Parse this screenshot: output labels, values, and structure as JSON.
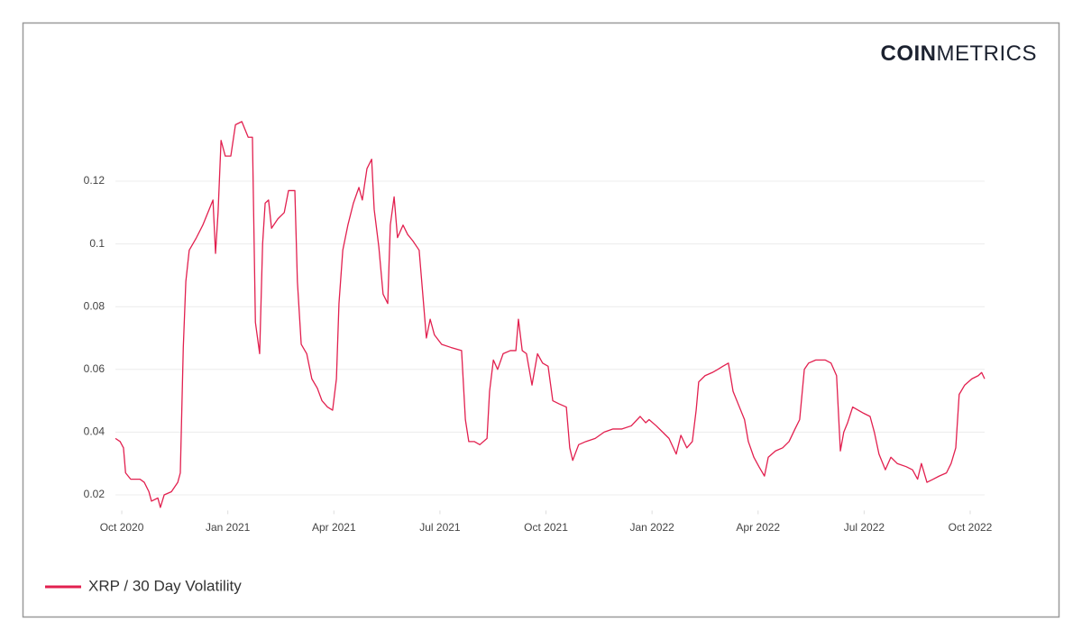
{
  "logo": {
    "bold": "COIN",
    "light": "METRICS"
  },
  "chart_data": {
    "type": "line",
    "x": [
      2020.735,
      2020.746,
      2020.754,
      2020.759,
      2020.771,
      2020.793,
      2020.803,
      2020.814,
      2020.82,
      2020.835,
      2020.841,
      2020.85,
      2020.867,
      2020.882,
      2020.888,
      2020.895,
      2020.901,
      2020.909,
      2020.926,
      2020.941,
      2020.956,
      2020.965,
      2020.971,
      2020.977,
      2020.984,
      2020.994,
      2021.007,
      2021.018,
      2021.033,
      2021.048,
      2021.058,
      2021.065,
      2021.075,
      2021.082,
      2021.088,
      2021.096,
      2021.103,
      2021.118,
      2021.133,
      2021.143,
      2021.158,
      2021.164,
      2021.173,
      2021.186,
      2021.198,
      2021.211,
      2021.222,
      2021.235,
      2021.247,
      2021.256,
      2021.262,
      2021.271,
      2021.283,
      2021.296,
      2021.309,
      2021.317,
      2021.328,
      2021.339,
      2021.345,
      2021.356,
      2021.366,
      2021.377,
      2021.383,
      2021.392,
      2021.4,
      2021.413,
      2021.424,
      2021.436,
      2021.451,
      2021.462,
      2021.468,
      2021.477,
      2021.487,
      2021.504,
      2021.526,
      2021.551,
      2021.56,
      2021.568,
      2021.581,
      2021.594,
      2021.611,
      2021.617,
      2021.626,
      2021.636,
      2021.649,
      2021.666,
      2021.679,
      2021.685,
      2021.694,
      2021.704,
      2021.717,
      2021.73,
      2021.742,
      2021.755,
      2021.766,
      2021.781,
      2021.798,
      2021.806,
      2021.813,
      2021.827,
      2021.844,
      2021.866,
      2021.887,
      2021.908,
      2021.929,
      2021.951,
      2021.972,
      2021.985,
      2021.993,
      2022.01,
      2022.025,
      2022.04,
      2022.057,
      2022.068,
      2022.082,
      2022.095,
      2022.104,
      2022.11,
      2022.125,
      2022.142,
      2022.155,
      2022.167,
      2022.18,
      2022.191,
      2022.206,
      2022.218,
      2022.227,
      2022.24,
      2022.252,
      2022.265,
      2022.274,
      2022.291,
      2022.308,
      2022.323,
      2022.337,
      2022.348,
      2022.359,
      2022.369,
      2022.386,
      2022.408,
      2022.422,
      2022.435,
      2022.444,
      2022.452,
      2022.461,
      2022.473,
      2022.486,
      2022.499,
      2022.514,
      2022.524,
      2022.535,
      2022.55,
      2022.563,
      2022.578,
      2022.599,
      2022.614,
      2022.626,
      2022.635,
      2022.648,
      2022.663,
      2022.677,
      2022.694,
      2022.705,
      2022.716,
      2022.724,
      2022.737,
      2022.754,
      2022.769,
      2022.777,
      2022.784
    ],
    "series": [
      {
        "name": "XRP / 30 Day Volatility",
        "color": "#e2204f",
        "values": [
          0.038,
          0.037,
          0.035,
          0.027,
          0.025,
          0.025,
          0.024,
          0.021,
          0.018,
          0.019,
          0.016,
          0.02,
          0.021,
          0.024,
          0.027,
          0.067,
          0.088,
          0.098,
          0.102,
          0.106,
          0.111,
          0.114,
          0.097,
          0.11,
          0.133,
          0.128,
          0.128,
          0.138,
          0.139,
          0.134,
          0.134,
          0.075,
          0.065,
          0.1,
          0.113,
          0.114,
          0.105,
          0.108,
          0.11,
          0.117,
          0.117,
          0.088,
          0.068,
          0.065,
          0.057,
          0.054,
          0.05,
          0.048,
          0.047,
          0.057,
          0.081,
          0.098,
          0.106,
          0.113,
          0.118,
          0.114,
          0.124,
          0.127,
          0.111,
          0.099,
          0.084,
          0.081,
          0.106,
          0.115,
          0.102,
          0.106,
          0.103,
          0.101,
          0.098,
          0.08,
          0.07,
          0.076,
          0.071,
          0.068,
          0.067,
          0.066,
          0.044,
          0.037,
          0.037,
          0.036,
          0.038,
          0.053,
          0.063,
          0.06,
          0.065,
          0.066,
          0.066,
          0.076,
          0.066,
          0.065,
          0.055,
          0.065,
          0.062,
          0.061,
          0.05,
          0.049,
          0.048,
          0.035,
          0.031,
          0.036,
          0.037,
          0.038,
          0.04,
          0.041,
          0.041,
          0.042,
          0.045,
          0.043,
          0.044,
          0.042,
          0.04,
          0.038,
          0.033,
          0.039,
          0.035,
          0.037,
          0.047,
          0.056,
          0.058,
          0.059,
          0.06,
          0.061,
          0.062,
          0.053,
          0.048,
          0.044,
          0.037,
          0.032,
          0.029,
          0.026,
          0.032,
          0.034,
          0.035,
          0.037,
          0.041,
          0.044,
          0.06,
          0.062,
          0.063,
          0.063,
          0.062,
          0.058,
          0.034,
          0.04,
          0.043,
          0.048,
          0.047,
          0.046,
          0.045,
          0.04,
          0.033,
          0.028,
          0.032,
          0.03,
          0.029,
          0.028,
          0.025,
          0.03,
          0.024,
          0.025,
          0.026,
          0.027,
          0.03,
          0.035,
          0.052,
          0.055,
          0.057,
          0.058,
          0.059,
          0.057
        ]
      }
    ],
    "xlim": [
      2020.735,
      2022.784
    ],
    "xticks": [
      {
        "value": 2020.75,
        "label": "Oct 2020"
      },
      {
        "value": 2021.0,
        "label": "Jan 2021"
      },
      {
        "value": 2021.25,
        "label": "Apr 2021"
      },
      {
        "value": 2021.5,
        "label": "Jul 2021"
      },
      {
        "value": 2021.75,
        "label": "Oct 2021"
      },
      {
        "value": 2022.0,
        "label": "Jan 2022"
      },
      {
        "value": 2022.25,
        "label": "Apr 2022"
      },
      {
        "value": 2022.5,
        "label": "Jul 2022"
      },
      {
        "value": 2022.75,
        "label": "Oct 2022"
      }
    ],
    "ylim": [
      0.015,
      0.14
    ],
    "yticks": [
      0.02,
      0.04,
      0.06,
      0.08,
      0.1,
      0.12
    ],
    "grid": true
  }
}
